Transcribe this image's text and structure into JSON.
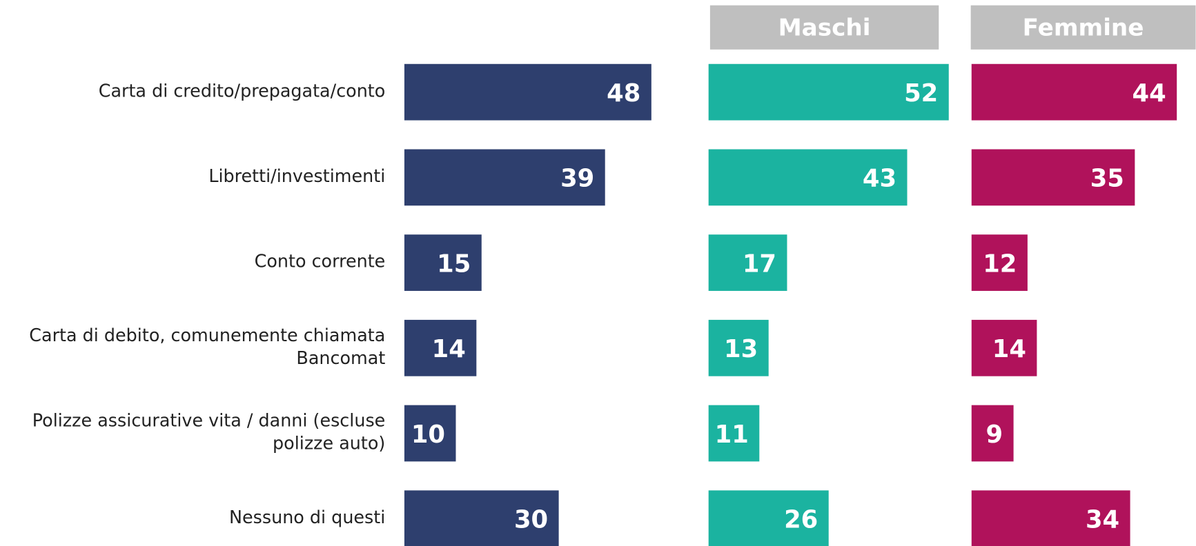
{
  "chart_data": {
    "type": "bar",
    "orientation": "horizontal",
    "categories": [
      "Carta di credito/prepagata/conto",
      "Libretti/investimenti",
      "Conto corrente",
      "Carta di debito, comunemente chiamata Bancomat",
      "Polizze assicurative vita / danni (escluse polizze auto)",
      "Nessuno di questi"
    ],
    "series": [
      {
        "color": "#2e3f6e",
        "values": [
          48,
          39,
          15,
          14,
          10,
          30
        ]
      },
      {
        "name": "Maschi",
        "color": "#1bb3a0",
        "values": [
          52,
          43,
          17,
          13,
          11,
          26
        ]
      },
      {
        "name": "Femmine",
        "color": "#b0125b",
        "values": [
          44,
          35,
          12,
          14,
          9,
          34
        ]
      }
    ]
  }
}
